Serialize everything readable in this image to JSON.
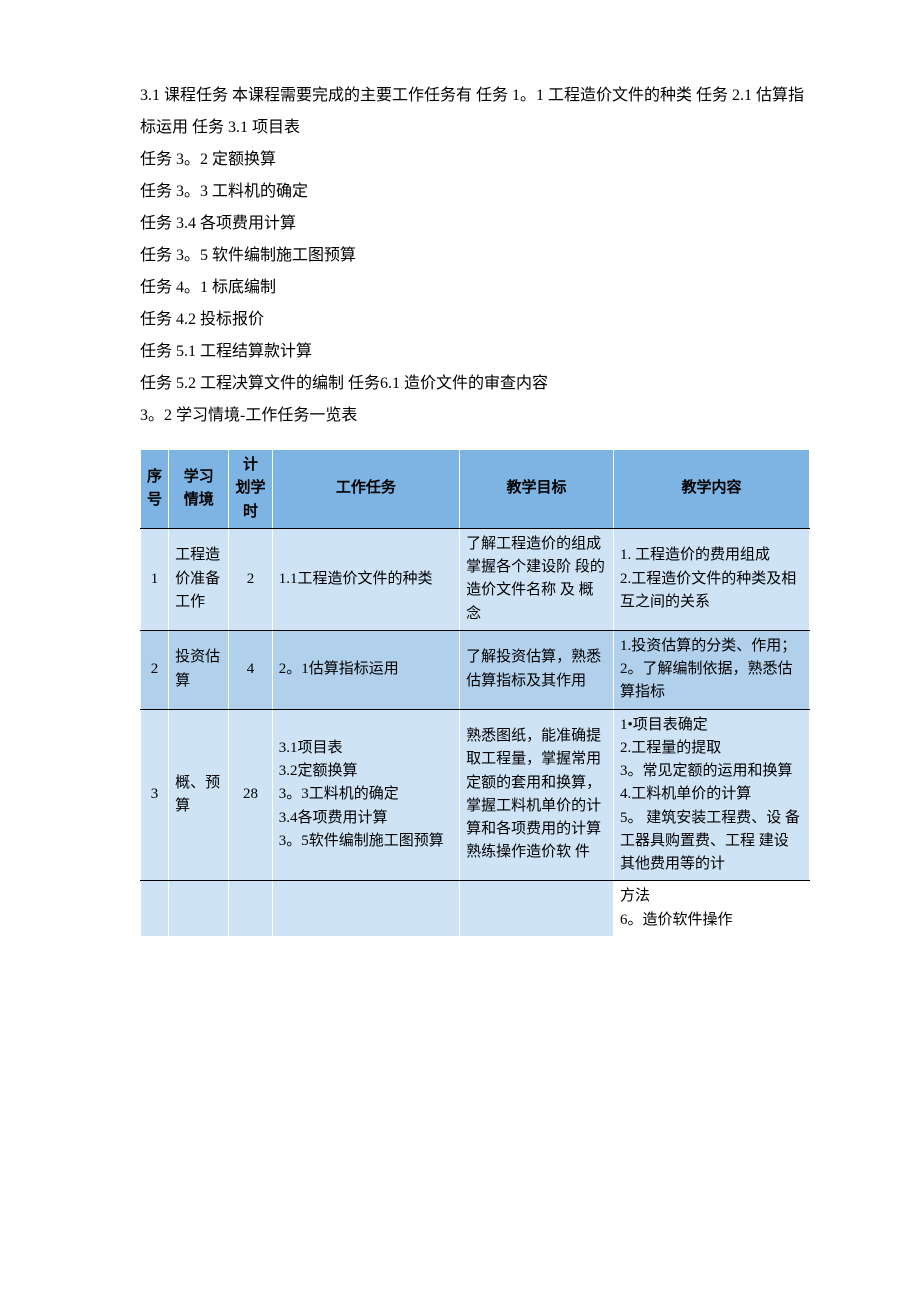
{
  "colors": {
    "header_bg": "#7db4e3",
    "row_light": "#cee3f5",
    "row_mid": "#b1d0ec",
    "row_white": "#ffffff",
    "text": "#000000",
    "page_bg": "#ffffff"
  },
  "typography": {
    "body_font": "SimSun",
    "body_size_pt": 12,
    "table_size_pt": 11,
    "line_height_body": 2.0,
    "line_height_table": 1.55
  },
  "text": {
    "p1": "3.1 课程任务 本课程需要完成的主要工作任务有 任务 1。1 工程造价文件的种类 任务 2.1 估算指标运用 任务 3.1 项目表",
    "p2": "任务 3。2 定额换算",
    "p3": "任务 3。3 工料机的确定",
    "p4": "任务 3.4 各项费用计算",
    "p5": "任务 3。5 软件编制施工图预算",
    "p6": "任务 4。1 标底编制",
    "p7": "任务 4.2 投标报价",
    "p8": "任务 5.1 工程结算款计算",
    "p9": "任务 5.2 工程决算文件的编制 任务6.1 造价文件的审查内容",
    "p10": "3。2 学习情境-工作任务一览表"
  },
  "table": {
    "columns": {
      "seq": "序号",
      "scene": "学习 情境",
      "hours": "计 划学 时",
      "task": "工作任务",
      "goal": "教学目标",
      "content": "教学内容"
    },
    "col_widths_pct": [
      4.2,
      9,
      6.5,
      28,
      23,
      29.3
    ],
    "rows": [
      {
        "seq": "1",
        "scene": "工程造价准备工作",
        "hours": "2",
        "task": "1.1工程造价文件的种类",
        "goal": "了解工程造价的组成掌握各个建设阶 段的造价文件名称 及 概念",
        "content": "1.   工程造价的费用组成\n2.工程造价文件的种类及相互之间的关系",
        "bg": "row_light"
      },
      {
        "seq": "2",
        "scene": "投资估算",
        "hours": "4",
        "task": "2。1估算指标运用",
        "goal": "了解投资估算，熟悉估算指标及其作用",
        "content": "1.投资估算的分类、作用；\n2。了解编制依据，熟悉估算指标",
        "bg": "row_mid"
      },
      {
        "seq": "3",
        "scene": "概、预算",
        "hours": "28",
        "task": "3.1项目表\n3.2定额换算\n3。3工料机的确定\n3.4各项费用计算\n3。5软件编制施工图预算",
        "goal": "熟悉图纸，能准确提取工程量，掌握常用定额的套用和换算，掌握工料机单价的计算和各项费用的计算熟练操作造价软 件",
        "content": "1•项目表确定\n2.工程量的提取\n3。常见定额的运用和换算\n4.工料机单价的计算\n5。  建筑安装工程费、设  备工器具购置费、工程  建设其他费用等的计",
        "bg": "row_light"
      },
      {
        "seq": "",
        "scene": "",
        "hours": "",
        "task": "",
        "goal": "",
        "content": "方法\n6。造价软件操作",
        "bg": "row_white"
      }
    ]
  }
}
